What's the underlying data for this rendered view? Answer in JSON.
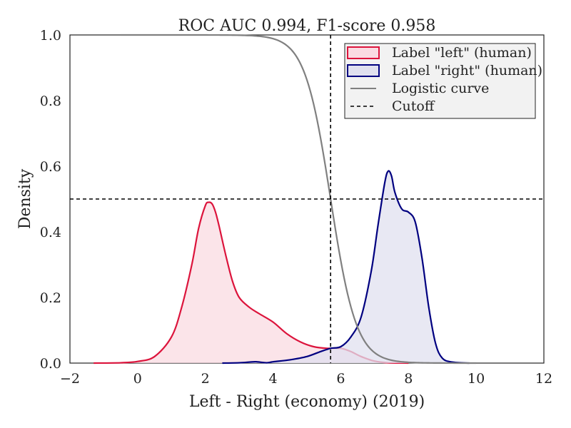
{
  "chart_data": {
    "type": "area",
    "title": "ROC AUC 0.994, F1-score 0.958",
    "xlabel": "Left - Right (economy) (2019)",
    "ylabel": "Density",
    "xlim": [
      -2,
      12
    ],
    "ylim": [
      0,
      1.0
    ],
    "xticks": [
      -2,
      0,
      2,
      4,
      6,
      8,
      10,
      12
    ],
    "xtick_labels": [
      "−2",
      "0",
      "2",
      "4",
      "6",
      "8",
      "10",
      "12"
    ],
    "yticks": [
      0,
      0.2,
      0.4,
      0.6,
      0.8,
      1.0
    ],
    "ytick_labels": [
      "0.0",
      "0.2",
      "0.4",
      "0.6",
      "0.8",
      "1.0"
    ],
    "legend_position": "top-right",
    "series": [
      {
        "name": "Label \"left\" (human)",
        "kind": "density",
        "color": "#dc143c",
        "fill": "#fadbe2",
        "x": [
          -1.3,
          -0.5,
          0,
          0.5,
          1.0,
          1.3,
          1.6,
          1.8,
          2.0,
          2.1,
          2.2,
          2.3,
          2.4,
          2.6,
          2.8,
          3.0,
          3.3,
          3.6,
          4.0,
          4.4,
          4.8,
          5.2,
          5.6,
          6.0,
          6.3,
          6.6,
          7.0,
          7.4,
          8.0
        ],
        "y": [
          0.0,
          0.001,
          0.005,
          0.02,
          0.08,
          0.17,
          0.3,
          0.41,
          0.48,
          0.49,
          0.485,
          0.46,
          0.42,
          0.33,
          0.25,
          0.2,
          0.17,
          0.15,
          0.125,
          0.09,
          0.065,
          0.05,
          0.045,
          0.045,
          0.035,
          0.02,
          0.006,
          0.001,
          0.0
        ]
      },
      {
        "name": "Label \"right\" (human)",
        "kind": "density",
        "color": "#000080",
        "fill": "#e0e0ef",
        "x": [
          2.5,
          3.0,
          3.3,
          3.5,
          3.8,
          4.0,
          4.5,
          5.0,
          5.4,
          5.7,
          6.0,
          6.3,
          6.6,
          6.9,
          7.1,
          7.3,
          7.4,
          7.5,
          7.6,
          7.8,
          8.0,
          8.2,
          8.4,
          8.6,
          8.8,
          9.0,
          9.3,
          9.8
        ],
        "y": [
          0.0,
          0.001,
          0.003,
          0.004,
          0.001,
          0.004,
          0.01,
          0.02,
          0.035,
          0.045,
          0.05,
          0.08,
          0.14,
          0.28,
          0.42,
          0.55,
          0.585,
          0.57,
          0.52,
          0.47,
          0.46,
          0.43,
          0.32,
          0.17,
          0.06,
          0.015,
          0.003,
          0.0
        ]
      },
      {
        "name": "Logistic curve",
        "kind": "line",
        "color": "#808080",
        "midpoint": 5.7,
        "scale": 0.38,
        "x_start": -0.5,
        "x_end": 10.0
      },
      {
        "name": "Cutoff",
        "kind": "cutoff",
        "color": "#000000",
        "x": 5.7,
        "y": 0.5
      }
    ]
  }
}
